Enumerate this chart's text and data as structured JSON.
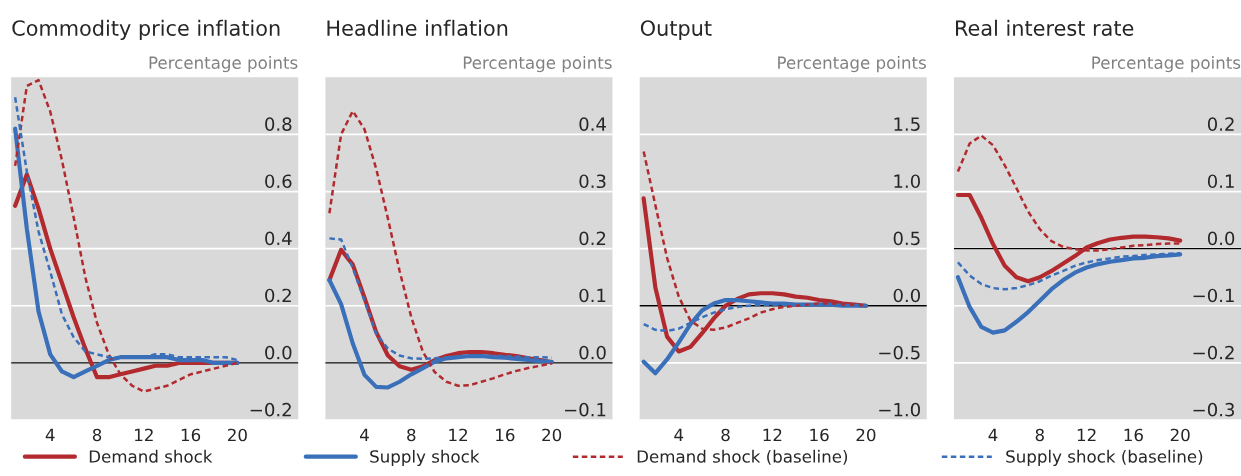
{
  "chart_data": [
    {
      "type": "line",
      "title": "Commodity price inflation",
      "ylabel": "Percentage points",
      "x": [
        1,
        2,
        3,
        4,
        5,
        6,
        7,
        8,
        9,
        10,
        11,
        12,
        13,
        14,
        15,
        16,
        17,
        18,
        19,
        20
      ],
      "xlim": [
        0.66,
        25.2
      ],
      "ylim": [
        -0.2,
        1.0
      ],
      "yticks": [
        {
          "value": -0.2,
          "label": "−0.2"
        },
        {
          "value": 0,
          "label": "0.0"
        },
        0.2,
        0.4,
        0.6,
        0.8
      ],
      "xticks": [
        4,
        8,
        12,
        16,
        20
      ],
      "grid": "y",
      "legend": "bottom",
      "ref_lines": [
        {
          "axis": "y",
          "value": 0,
          "color": "#000000"
        }
      ],
      "series": [
        {
          "name": "Demand shock",
          "color": "#b22a2e",
          "line_style": "solid",
          "values": [
            0.55,
            0.66,
            0.54,
            0.4,
            0.28,
            0.16,
            0.05,
            -0.05,
            -0.05,
            -0.04,
            -0.03,
            -0.02,
            -0.01,
            -0.01,
            0.0,
            0.0,
            0.0,
            0.0,
            0.0,
            0.0
          ]
        },
        {
          "name": "Supply shock",
          "color": "#3a6fba",
          "line_style": "solid",
          "values": [
            0.82,
            0.47,
            0.18,
            0.03,
            -0.03,
            -0.05,
            -0.03,
            -0.01,
            0.01,
            0.02,
            0.02,
            0.02,
            0.02,
            0.02,
            0.01,
            0.01,
            0.01,
            0.0,
            0.0,
            0.0
          ]
        },
        {
          "name": "Demand shock (baseline)",
          "color": "#b22a2e",
          "line_style": "dashed",
          "values": [
            0.69,
            0.97,
            0.99,
            0.88,
            0.71,
            0.51,
            0.3,
            0.14,
            0.03,
            -0.04,
            -0.08,
            -0.1,
            -0.09,
            -0.08,
            -0.06,
            -0.04,
            -0.03,
            -0.02,
            -0.01,
            0.0
          ]
        },
        {
          "name": "Supply shock (baseline)",
          "color": "#3a6fba",
          "line_style": "dashed",
          "values": [
            0.93,
            0.67,
            0.46,
            0.32,
            0.17,
            0.09,
            0.04,
            0.03,
            0.02,
            0.02,
            0.02,
            0.02,
            0.03,
            0.03,
            0.02,
            0.02,
            0.02,
            0.02,
            0.02,
            0.01
          ]
        }
      ]
    },
    {
      "type": "line",
      "title": "Headline inflation",
      "ylabel": "Percentage points",
      "x": [
        1,
        2,
        3,
        4,
        5,
        6,
        7,
        8,
        9,
        10,
        11,
        12,
        13,
        14,
        15,
        16,
        17,
        18,
        19,
        20
      ],
      "xlim": [
        0.66,
        25.2
      ],
      "ylim": [
        -0.1,
        0.5
      ],
      "yticks": [
        {
          "value": -0.1,
          "label": "−0.1"
        },
        {
          "value": 0,
          "label": "0.0"
        },
        0.1,
        0.2,
        0.3,
        0.4
      ],
      "xticks": [
        4,
        8,
        12,
        16,
        20
      ],
      "grid": "y",
      "ref_lines": [
        {
          "axis": "y",
          "value": 0,
          "color": "#000000"
        }
      ],
      "series": [
        {
          "color": "#b22a2e",
          "line_style": "solid",
          "values": [
            0.145,
            0.198,
            0.172,
            0.114,
            0.054,
            0.013,
            -0.006,
            -0.012,
            -0.006,
            0.005,
            0.012,
            0.017,
            0.019,
            0.019,
            0.017,
            0.014,
            0.012,
            0.008,
            0.005,
            0.001
          ]
        },
        {
          "color": "#3a6fba",
          "line_style": "solid",
          "values": [
            0.145,
            0.103,
            0.034,
            -0.021,
            -0.042,
            -0.043,
            -0.033,
            -0.02,
            -0.009,
            0.002,
            0.008,
            0.01,
            0.012,
            0.012,
            0.01,
            0.009,
            0.007,
            0.005,
            0.003,
            0.002
          ]
        },
        {
          "color": "#b22a2e",
          "line_style": "dashed",
          "values": [
            0.262,
            0.4,
            0.441,
            0.409,
            0.34,
            0.253,
            0.161,
            0.08,
            0.019,
            -0.016,
            -0.033,
            -0.04,
            -0.039,
            -0.033,
            -0.027,
            -0.02,
            -0.014,
            -0.009,
            -0.005,
            -0.001
          ]
        },
        {
          "color": "#3a6fba",
          "line_style": "dashed",
          "values": [
            0.218,
            0.216,
            0.166,
            0.109,
            0.051,
            0.025,
            0.013,
            0.008,
            0.007,
            0.008,
            0.009,
            0.01,
            0.012,
            0.012,
            0.012,
            0.012,
            0.011,
            0.01,
            0.01,
            0.009
          ]
        }
      ]
    },
    {
      "type": "line",
      "title": "Output",
      "ylabel": "Percentage points",
      "x": [
        1,
        2,
        3,
        4,
        5,
        6,
        7,
        8,
        9,
        10,
        11,
        12,
        13,
        14,
        15,
        16,
        17,
        18,
        19,
        20
      ],
      "xlim": [
        0.66,
        25.2
      ],
      "ylim": [
        -1.0,
        2.0
      ],
      "yticks": [
        {
          "value": -1.0,
          "label": "−1.0"
        },
        {
          "value": -0.5,
          "label": "−0.5"
        },
        {
          "value": 0,
          "label": "0.0"
        },
        0.5,
        {
          "value": 1,
          "label": "1.0"
        },
        1.5
      ],
      "xticks": [
        4,
        8,
        12,
        16,
        20
      ],
      "grid": "y",
      "ref_lines": [
        {
          "axis": "y",
          "value": 0,
          "color": "#000000"
        }
      ],
      "series": [
        {
          "color": "#b22a2e",
          "line_style": "solid",
          "values": [
            0.94,
            0.16,
            -0.27,
            -0.4,
            -0.36,
            -0.24,
            -0.11,
            0.0,
            0.06,
            0.1,
            0.11,
            0.11,
            0.1,
            0.08,
            0.07,
            0.05,
            0.04,
            0.02,
            0.01,
            0.0
          ]
        },
        {
          "color": "#3a6fba",
          "line_style": "solid",
          "values": [
            -0.49,
            -0.59,
            -0.47,
            -0.32,
            -0.16,
            -0.04,
            0.02,
            0.05,
            0.05,
            0.04,
            0.03,
            0.02,
            0.02,
            0.01,
            0.01,
            0.01,
            0.01,
            0.0,
            0.0,
            0.0
          ]
        },
        {
          "color": "#b22a2e",
          "line_style": "dashed",
          "values": [
            1.35,
            0.88,
            0.42,
            0.08,
            -0.13,
            -0.2,
            -0.21,
            -0.19,
            -0.15,
            -0.11,
            -0.06,
            -0.03,
            -0.01,
            0.0,
            0.01,
            0.02,
            0.02,
            0.01,
            0.01,
            0.0
          ]
        },
        {
          "color": "#3a6fba",
          "line_style": "dashed",
          "values": [
            -0.16,
            -0.21,
            -0.22,
            -0.2,
            -0.15,
            -0.1,
            -0.06,
            -0.03,
            -0.01,
            0.0,
            0.01,
            0.01,
            0.01,
            0.01,
            0.01,
            0.01,
            0.01,
            0.0,
            0.0,
            0.0
          ]
        }
      ]
    },
    {
      "type": "line",
      "title": "Real interest rate",
      "ylabel": "Percentage points",
      "x": [
        1,
        2,
        3,
        4,
        5,
        6,
        7,
        8,
        9,
        10,
        11,
        12,
        13,
        14,
        15,
        16,
        17,
        18,
        19,
        20
      ],
      "xlim": [
        0.66,
        25.2
      ],
      "ylim": [
        -0.3,
        0.3
      ],
      "yticks": [
        {
          "value": -0.3,
          "label": "−0.3"
        },
        {
          "value": -0.2,
          "label": "−0.2"
        },
        {
          "value": -0.1,
          "label": "−0.1"
        },
        {
          "value": 0,
          "label": "0.0"
        },
        0.1,
        0.2
      ],
      "xticks": [
        4,
        8,
        12,
        16,
        20
      ],
      "grid": "y",
      "ref_lines": [
        {
          "axis": "y",
          "value": 0,
          "color": "#000000"
        }
      ],
      "series": [
        {
          "color": "#b22a2e",
          "line_style": "solid",
          "values": [
            0.094,
            0.094,
            0.054,
            0.008,
            -0.03,
            -0.05,
            -0.057,
            -0.05,
            -0.039,
            -0.026,
            -0.013,
            0.002,
            0.01,
            0.016,
            0.019,
            0.021,
            0.021,
            0.02,
            0.018,
            0.014
          ]
        },
        {
          "color": "#3a6fba",
          "line_style": "solid",
          "values": [
            -0.05,
            -0.102,
            -0.137,
            -0.147,
            -0.143,
            -0.128,
            -0.111,
            -0.091,
            -0.071,
            -0.055,
            -0.042,
            -0.033,
            -0.027,
            -0.023,
            -0.02,
            -0.017,
            -0.016,
            -0.013,
            -0.012,
            -0.01
          ]
        },
        {
          "color": "#b22a2e",
          "line_style": "dashed",
          "values": [
            0.135,
            0.184,
            0.198,
            0.181,
            0.146,
            0.106,
            0.065,
            0.034,
            0.013,
            0.003,
            -0.001,
            -0.003,
            -0.003,
            -0.001,
            0.002,
            0.005,
            0.006,
            0.008,
            0.009,
            0.009
          ]
        },
        {
          "color": "#3a6fba",
          "line_style": "dashed",
          "values": [
            -0.024,
            -0.047,
            -0.062,
            -0.069,
            -0.071,
            -0.069,
            -0.064,
            -0.057,
            -0.047,
            -0.039,
            -0.03,
            -0.024,
            -0.02,
            -0.017,
            -0.014,
            -0.013,
            -0.011,
            -0.01,
            -0.009,
            -0.008
          ]
        }
      ]
    }
  ]
}
